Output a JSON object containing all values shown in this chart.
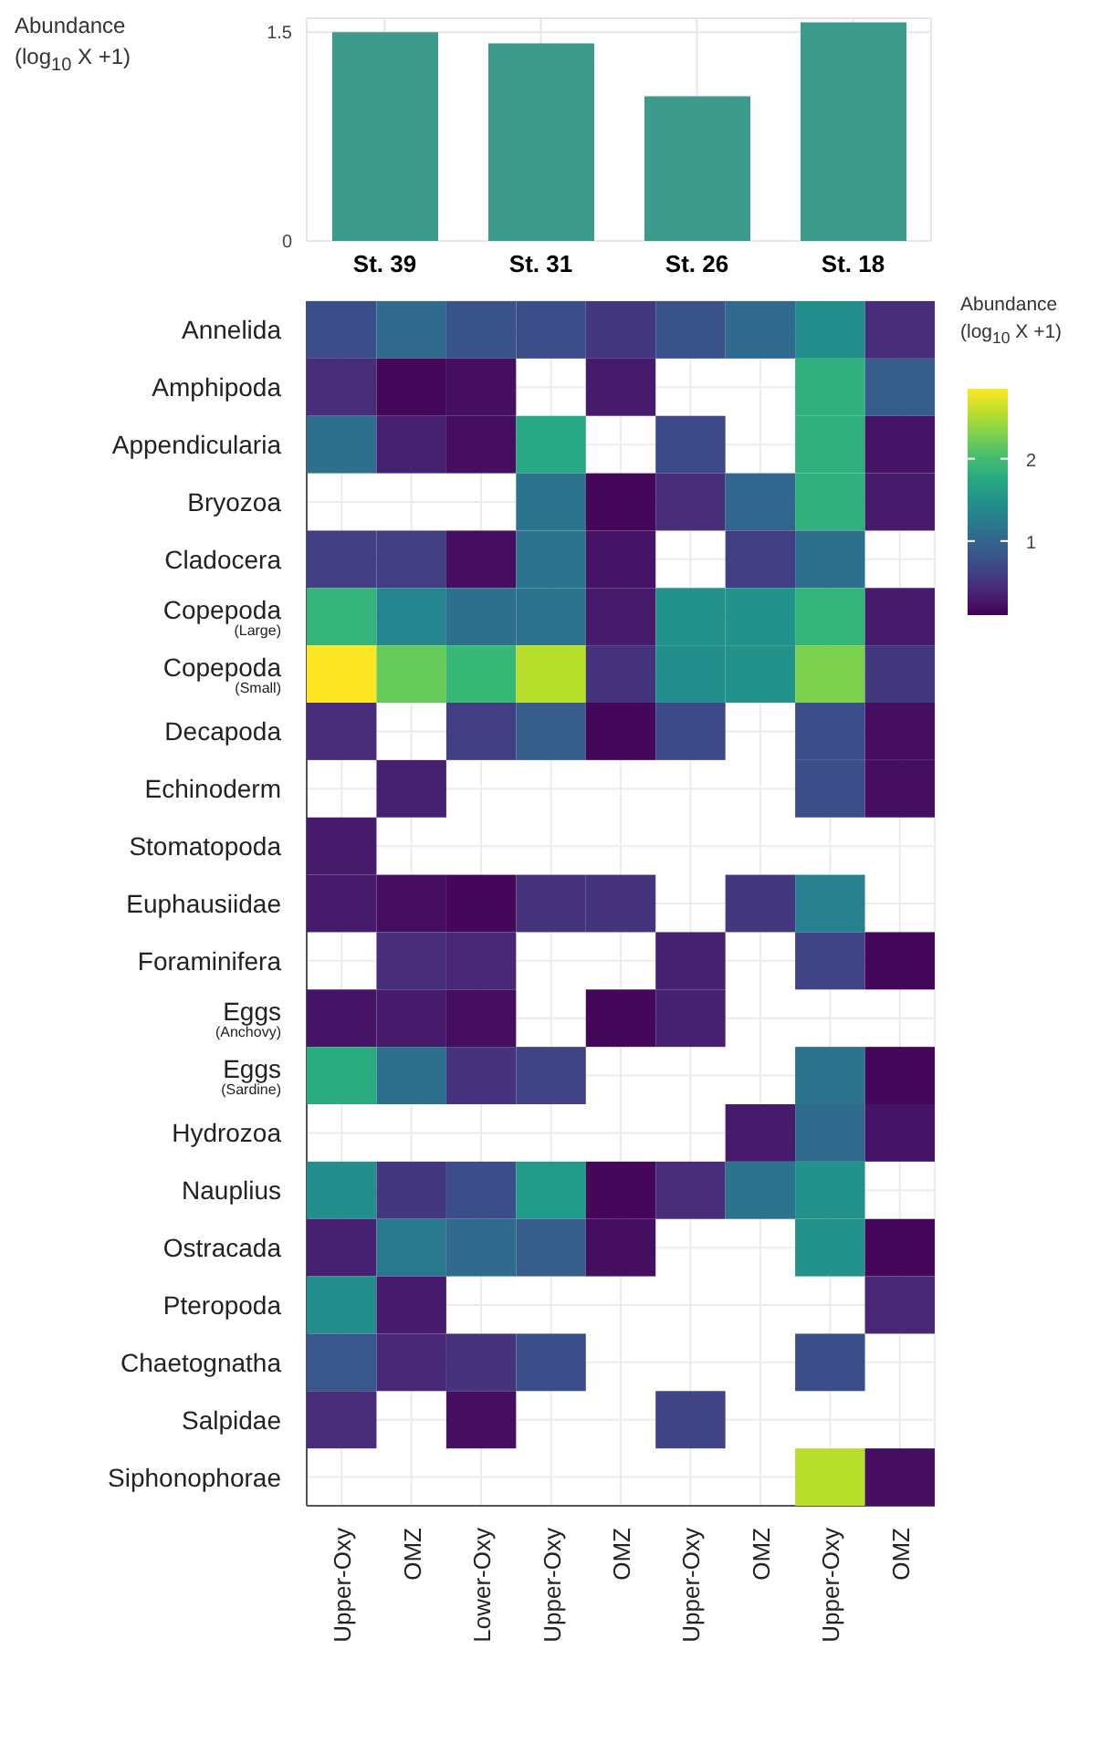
{
  "chart_data": [
    {
      "type": "bar",
      "ylabel": "Abundance (log$_{10}$ X +1)",
      "categories": [
        "St. 39",
        "St. 31",
        "St. 26",
        "St. 18"
      ],
      "values": [
        1.5,
        1.42,
        1.04,
        1.57
      ],
      "color": "#3d9b8c",
      "ylim": [
        0,
        1.6
      ],
      "yticks": [
        0,
        1.5
      ],
      "grid": true
    },
    {
      "type": "heatmap",
      "categories": [
        "Upper-Oxy",
        "OMZ",
        "Lower-Oxy",
        "Upper-Oxy",
        "OMZ",
        "Upper-Oxy",
        "OMZ",
        "Upper-Oxy",
        "OMZ"
      ],
      "y_categories": [
        "Annelida",
        "Amphipoda",
        "Appendicularia",
        "Bryozoa",
        "Cladocera",
        "Copepoda (Large)",
        "Copepoda (Small)",
        "Decapoda",
        "Echinoderm",
        "Stomatopoda",
        "Euphausiidae",
        "Foraminifera",
        "Eggs (Anchovy)",
        "Eggs (Sardine)",
        "Hydrozoa",
        "Nauplius",
        "Ostracada",
        "Pteropoda",
        "Chaetognatha",
        "Salpidae",
        "Siphonophorae"
      ],
      "clim": [
        0.1,
        2.85
      ],
      "cticks": [
        1,
        2
      ],
      "clabel": "Abundance (log$_{10}$ X +1)",
      "grid": true,
      "cells": [
        [
          0.75,
          1.05,
          0.8,
          0.75,
          0.55,
          0.8,
          1.05,
          1.45,
          0.45
        ],
        [
          0.45,
          0.15,
          0.2,
          null,
          0.3,
          null,
          null,
          1.85,
          0.9
        ],
        [
          1.1,
          0.35,
          0.2,
          1.75,
          null,
          0.7,
          null,
          1.85,
          0.25
        ],
        [
          null,
          null,
          null,
          1.15,
          0.15,
          0.45,
          1.0,
          1.85,
          0.3
        ],
        [
          0.6,
          0.6,
          0.2,
          1.15,
          0.25,
          null,
          0.6,
          1.1,
          null
        ],
        [
          1.9,
          1.35,
          1.1,
          1.15,
          0.3,
          1.5,
          1.5,
          1.9,
          0.3
        ],
        [
          2.85,
          2.2,
          1.95,
          2.55,
          0.5,
          1.45,
          1.5,
          2.3,
          0.55
        ],
        [
          0.45,
          null,
          0.6,
          0.9,
          0.15,
          0.7,
          null,
          0.75,
          0.2
        ],
        [
          null,
          0.35,
          null,
          null,
          null,
          null,
          null,
          0.75,
          0.2
        ],
        [
          0.3,
          null,
          null,
          null,
          null,
          null,
          null,
          null,
          null
        ],
        [
          0.3,
          0.2,
          0.15,
          0.5,
          0.5,
          null,
          0.55,
          1.3,
          null
        ],
        [
          null,
          0.45,
          0.4,
          null,
          null,
          0.35,
          null,
          0.65,
          0.15
        ],
        [
          0.25,
          0.3,
          0.2,
          null,
          0.15,
          0.35,
          null,
          null,
          null
        ],
        [
          1.8,
          1.1,
          0.5,
          0.65,
          null,
          null,
          null,
          1.15,
          0.15
        ],
        [
          null,
          null,
          null,
          null,
          null,
          null,
          0.3,
          1.05,
          0.25
        ],
        [
          1.45,
          0.55,
          0.75,
          1.6,
          0.15,
          0.45,
          1.15,
          1.5,
          null
        ],
        [
          0.35,
          1.2,
          1.05,
          0.9,
          0.2,
          null,
          null,
          1.5,
          0.15
        ],
        [
          1.45,
          0.3,
          null,
          null,
          null,
          null,
          null,
          null,
          0.4
        ],
        [
          0.85,
          0.4,
          0.5,
          0.75,
          null,
          null,
          null,
          0.75,
          null
        ],
        [
          0.45,
          null,
          0.2,
          null,
          null,
          0.65,
          null,
          null,
          null
        ],
        [
          null,
          null,
          null,
          null,
          null,
          null,
          null,
          2.55,
          0.2
        ]
      ]
    }
  ]
}
